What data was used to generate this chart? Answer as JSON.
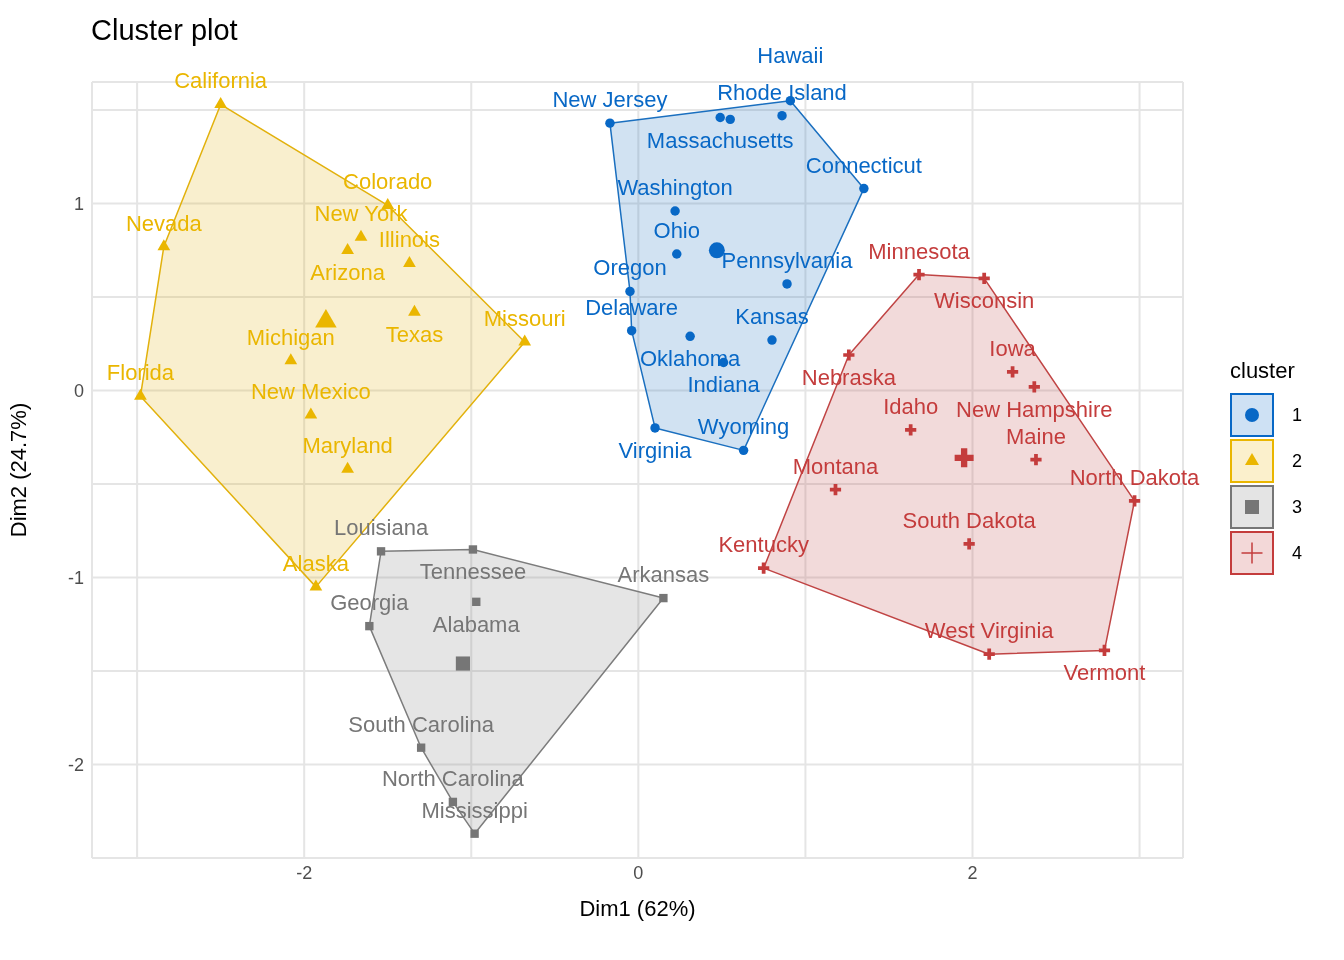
{
  "chart_data": {
    "type": "scatter",
    "title": "Cluster plot",
    "xlabel": "Dim1 (62%)",
    "ylabel": "Dim2 (24.7%)",
    "legend_title": "cluster",
    "legend": "right",
    "grid": true,
    "xlim": [
      -3.27,
      3.26
    ],
    "ylim": [
      -2.5,
      1.65
    ],
    "xticks": [
      {
        "value": -3,
        "label": null
      },
      -2,
      {
        "value": -1,
        "label": null
      },
      0,
      {
        "value": 1,
        "label": null
      },
      2,
      {
        "value": 3,
        "label": null
      }
    ],
    "yticks": [
      {
        "value": -2.5,
        "label": null
      },
      -2,
      {
        "value": -1.5,
        "label": null
      },
      -1,
      {
        "value": -0.5,
        "label": null
      },
      0,
      {
        "value": 0.5,
        "label": null
      },
      1,
      {
        "value": 1.5,
        "label": null
      }
    ],
    "series": [
      {
        "type": "area",
        "color": "#1a6fbf",
        "x": [
          -0.17,
          0.91,
          1.35,
          0.63,
          0.1,
          -0.04,
          -0.05
        ],
        "values": [
          1.43,
          1.55,
          1.08,
          -0.32,
          -0.2,
          0.32,
          0.53
        ]
      },
      {
        "type": "area",
        "color": "#e2b10c",
        "x": [
          -2.5,
          -1.5,
          -0.68,
          -1.93,
          -2.98,
          -2.84
        ],
        "values": [
          1.53,
          0.99,
          0.26,
          -1.05,
          -0.03,
          0.77
        ]
      },
      {
        "type": "area",
        "color": "#7c7c7c",
        "x": [
          -1.54,
          -0.99,
          0.15,
          -0.98,
          -1.11,
          -1.3,
          -1.61
        ],
        "values": [
          -0.86,
          -0.85,
          -1.11,
          -2.37,
          -2.2,
          -1.91,
          -1.26
        ]
      },
      {
        "type": "area",
        "color": "#c04444",
        "x": [
          1.68,
          2.07,
          2.97,
          2.79,
          2.1,
          0.75,
          1.26
        ],
        "values": [
          0.62,
          0.6,
          -0.59,
          -1.39,
          -1.41,
          -0.95,
          0.19
        ]
      },
      {
        "name": "1",
        "color": "#0868c6",
        "marker": "circle",
        "x": [
          -0.17,
          0.49,
          0.55,
          0.86,
          0.91,
          1.35,
          0.22,
          0.23,
          0.89,
          -0.05,
          -0.04,
          0.31,
          0.8,
          0.51,
          0.1,
          0.63
        ],
        "values": [
          1.43,
          1.46,
          1.45,
          1.47,
          1.55,
          1.08,
          0.96,
          0.73,
          0.57,
          0.53,
          0.32,
          0.29,
          0.27,
          0.15,
          -0.2,
          -0.32
        ],
        "value_labels": [
          "New Jersey",
          "Massachusetts",
          null,
          "Rhode Island",
          "Hawaii",
          "Connecticut",
          "Washington",
          "Ohio",
          "Pennsylvania",
          "Oregon",
          "Delaware",
          "Oklahoma",
          "Kansas",
          "Indiana",
          "Virginia",
          "Wyoming"
        ]
      },
      {
        "name": "2",
        "color": "#eab600",
        "marker": "triangle",
        "x": [
          -2.5,
          -2.84,
          -1.5,
          -1.66,
          -1.74,
          -1.37,
          -1.34,
          -0.68,
          -2.08,
          -2.98,
          -1.96,
          -1.74,
          -1.93
        ],
        "values": [
          1.53,
          0.77,
          0.99,
          0.82,
          0.75,
          0.68,
          0.42,
          0.26,
          0.16,
          -0.03,
          -0.13,
          -0.42,
          -1.05
        ],
        "value_labels": [
          "California",
          "Nevada",
          "Colorado",
          "New York",
          "Arizona",
          "Illinois",
          "Texas",
          "Missouri",
          "Michigan",
          "Florida",
          "New Mexico",
          "Maryland",
          "Alaska"
        ]
      },
      {
        "name": "3",
        "color": "#767676",
        "marker": "square",
        "x": [
          -1.54,
          -0.99,
          -0.97,
          0.15,
          -1.61,
          -1.3,
          -1.11,
          -0.98
        ],
        "values": [
          -0.86,
          -0.85,
          -1.13,
          -1.11,
          -1.26,
          -1.91,
          -2.2,
          -2.37
        ],
        "value_labels": [
          "Louisiana",
          "Tennessee",
          "Alabama",
          "Arkansas",
          "Georgia",
          "South Carolina",
          "North Carolina",
          "Mississippi"
        ]
      },
      {
        "name": "4",
        "color": "#c43c3c",
        "marker": "cross",
        "x": [
          1.68,
          2.07,
          1.26,
          2.24,
          2.37,
          1.63,
          2.38,
          1.18,
          2.97,
          1.98,
          0.75,
          2.1,
          2.79
        ],
        "values": [
          0.62,
          0.6,
          0.19,
          0.1,
          0.02,
          -0.21,
          -0.37,
          -0.53,
          -0.59,
          -0.82,
          -0.95,
          -1.41,
          -1.39
        ],
        "value_labels": [
          "Minnesota",
          "Wisconsin",
          "Nebraska",
          "Iowa",
          "New Hampshire",
          "Idaho",
          "Maine",
          "Montana",
          "North Dakota",
          "South Dakota",
          "Kentucky",
          "West Virginia",
          "Vermont"
        ]
      },
      {
        "color": "#0868c6",
        "marker": "circle",
        "x": [
          0.47
        ],
        "values": [
          0.75
        ]
      },
      {
        "color": "#eab600",
        "marker": "triangle",
        "x": [
          -1.87
        ],
        "values": [
          0.37
        ]
      },
      {
        "color": "#767676",
        "marker": "square",
        "x": [
          -1.05
        ],
        "values": [
          -1.46
        ]
      },
      {
        "color": "#c43c3c",
        "marker": "cross",
        "x": [
          1.95
        ],
        "values": [
          -0.36
        ]
      }
    ]
  }
}
